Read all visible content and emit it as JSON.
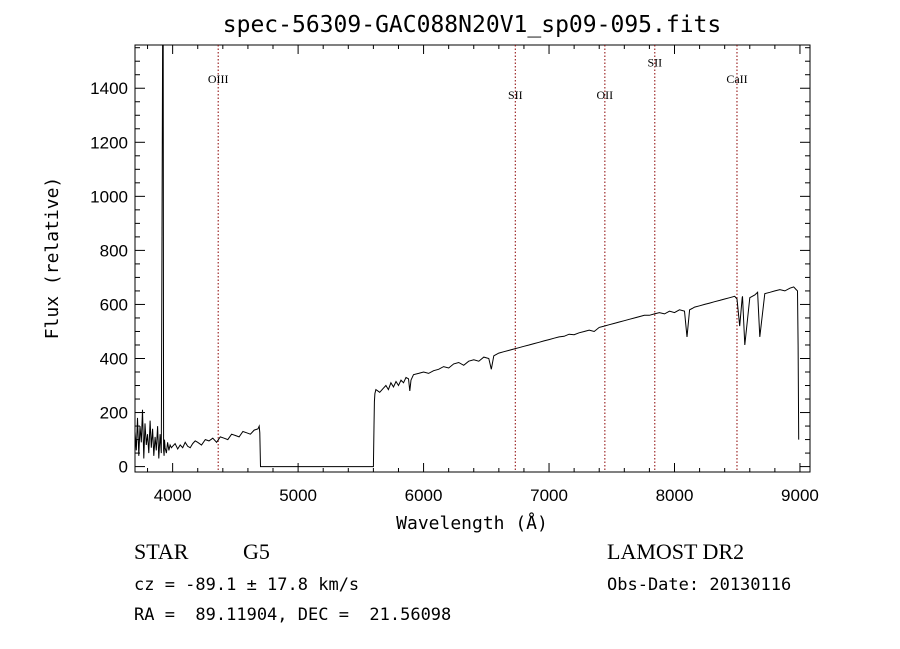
{
  "chart_data": {
    "type": "line",
    "title": "spec-56309-GAC088N20V1_sp09-095.fits",
    "xlabel": "Wavelength (Å)",
    "ylabel": "Flux (relative)",
    "xlim": [
      3700,
      9080
    ],
    "ylim": [
      -20,
      1560
    ],
    "x_ticks": [
      4000,
      5000,
      6000,
      7000,
      8000,
      9000
    ],
    "y_ticks": [
      0,
      200,
      400,
      600,
      800,
      1000,
      1200,
      1400
    ],
    "line_color": "#000000",
    "marker_color": "#8b0000",
    "grid": false,
    "spectral_lines": [
      {
        "label": "OIII",
        "wavelength": 4363,
        "label_y": 1420
      },
      {
        "label": "SII",
        "wavelength": 6731,
        "label_y": 1360
      },
      {
        "label": "OII",
        "wavelength": 7445,
        "label_y": 1360
      },
      {
        "label": "SII",
        "wavelength": 7843,
        "label_y": 1480
      },
      {
        "label": "CaII",
        "wavelength": 8498,
        "label_y": 1420
      }
    ],
    "series": [
      {
        "x": [
          3700,
          3710,
          3720,
          3730,
          3740,
          3750,
          3760,
          3770,
          3780,
          3790,
          3800,
          3810,
          3820,
          3830,
          3840,
          3850,
          3860,
          3870,
          3880,
          3890,
          3900,
          3910,
          3920,
          3925,
          3928,
          3932,
          3935,
          3940,
          3950,
          3960,
          3970,
          3980,
          3990,
          4000,
          4020,
          4040,
          4060,
          4080,
          4100,
          4120,
          4140,
          4160,
          4180,
          4200,
          4230,
          4260,
          4290,
          4320,
          4350,
          4380,
          4410,
          4440,
          4470,
          4500,
          4530,
          4560,
          4590,
          4620,
          4650,
          4680,
          4690,
          4695,
          4700,
          4705,
          5600,
          5605,
          5608,
          5612,
          5620,
          5650,
          5680,
          5700,
          5720,
          5740,
          5760,
          5780,
          5800,
          5820,
          5840,
          5860,
          5880,
          5890,
          5900,
          5920,
          5960,
          6000,
          6040,
          6080,
          6120,
          6160,
          6200,
          6240,
          6280,
          6320,
          6360,
          6400,
          6440,
          6480,
          6520,
          6540,
          6560,
          6580,
          6600,
          6640,
          6680,
          6720,
          6760,
          6800,
          6840,
          6880,
          6920,
          6960,
          7000,
          7040,
          7080,
          7120,
          7160,
          7200,
          7240,
          7280,
          7320,
          7360,
          7400,
          7440,
          7480,
          7520,
          7560,
          7600,
          7640,
          7680,
          7720,
          7760,
          7800,
          7840,
          7880,
          7920,
          7960,
          8000,
          8040,
          8080,
          8100,
          8120,
          8140,
          8160,
          8200,
          8240,
          8280,
          8320,
          8360,
          8400,
          8440,
          8480,
          8498,
          8520,
          8540,
          8542,
          8560,
          8600,
          8640,
          8662,
          8680,
          8720,
          8760,
          8800,
          8840,
          8880,
          8920,
          8950,
          8970,
          8980,
          8985,
          8990
        ],
        "y": [
          130,
          60,
          180,
          40,
          150,
          90,
          210,
          30,
          160,
          80,
          120,
          50,
          170,
          70,
          140,
          40,
          110,
          60,
          150,
          30,
          120,
          50,
          1560,
          1560,
          60,
          40,
          100,
          70,
          50,
          90,
          60,
          80,
          70,
          75,
          85,
          65,
          80,
          70,
          90,
          75,
          70,
          85,
          95,
          90,
          80,
          100,
          95,
          105,
          90,
          110,
          105,
          100,
          120,
          115,
          110,
          130,
          125,
          120,
          135,
          140,
          150,
          125,
          0,
          0,
          0,
          150,
          240,
          270,
          285,
          275,
          290,
          300,
          285,
          310,
          295,
          315,
          300,
          320,
          310,
          330,
          325,
          280,
          320,
          340,
          345,
          350,
          345,
          355,
          360,
          370,
          365,
          380,
          385,
          375,
          390,
          395,
          390,
          405,
          400,
          360,
          410,
          415,
          420,
          425,
          430,
          435,
          440,
          445,
          450,
          455,
          460,
          465,
          470,
          475,
          480,
          482,
          490,
          488,
          495,
          500,
          505,
          500,
          515,
          520,
          525,
          530,
          535,
          540,
          545,
          550,
          555,
          560,
          560,
          565,
          570,
          565,
          575,
          570,
          580,
          575,
          480,
          580,
          585,
          590,
          595,
          600,
          605,
          610,
          615,
          620,
          625,
          630,
          620,
          520,
          625,
          630,
          450,
          625,
          635,
          645,
          480,
          640,
          645,
          650,
          655,
          650,
          660,
          665,
          655,
          650,
          450,
          100
        ]
      }
    ]
  },
  "info": {
    "object_class": "STAR",
    "subclass": "G5",
    "survey": "LAMOST DR2",
    "redshift": "cz = -89.1 ± 17.8 km/s",
    "obs_date": "Obs-Date: 20130116",
    "coords": "RA =  89.11904, DEC =  21.56098"
  }
}
